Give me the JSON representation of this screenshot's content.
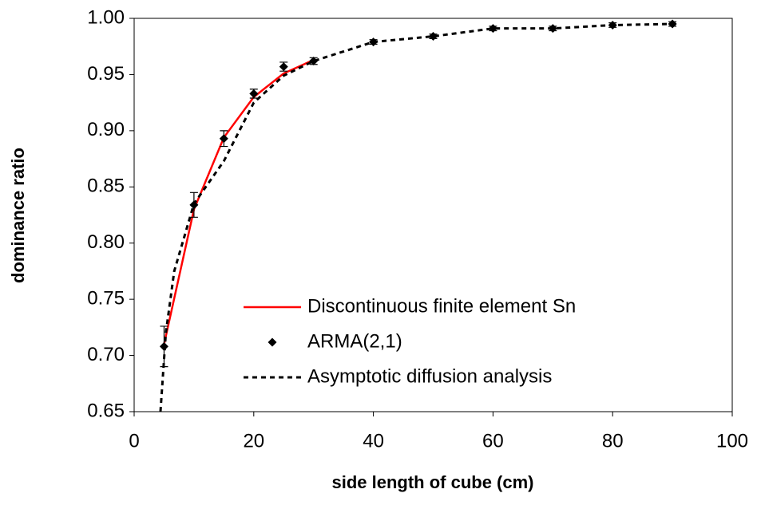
{
  "chart_data": {
    "type": "line",
    "x_label": "side length of cube (cm)",
    "y_label": "dominance ratio",
    "xlim": [
      0,
      100
    ],
    "xticks": [
      0,
      20,
      40,
      60,
      80,
      100
    ],
    "ylim": [
      0.65,
      1.0
    ],
    "yticks": [
      {
        "value": 0.65,
        "label": "0.65"
      },
      {
        "value": 0.7,
        "label": "0.70"
      },
      {
        "value": 0.75,
        "label": "0.75"
      },
      {
        "value": 0.8,
        "label": "0.80"
      },
      {
        "value": 0.85,
        "label": "0.85"
      },
      {
        "value": 0.9,
        "label": "0.90"
      },
      {
        "value": 0.95,
        "label": "0.95"
      },
      {
        "value": 1.0,
        "label": "1.00"
      }
    ],
    "grid": false,
    "legend": "lower right",
    "series": [
      {
        "name": "Discontinuous finite element Sn",
        "color": "#ff0000",
        "style": "solid",
        "x": [
          5,
          10,
          15,
          20,
          25,
          30
        ],
        "values": [
          0.71,
          0.83,
          0.894,
          0.93,
          0.951,
          0.963
        ]
      },
      {
        "name": "ARMA(2,1)",
        "color": "#000000",
        "style": "marker",
        "x": [
          5,
          10,
          15,
          20,
          25,
          30,
          40,
          50,
          60,
          70,
          80,
          90
        ],
        "values": [
          0.708,
          0.834,
          0.893,
          0.933,
          0.957,
          0.962,
          0.979,
          0.984,
          0.991,
          0.991,
          0.994,
          0.995
        ],
        "errors": [
          0.018,
          0.011,
          0.007,
          0.004,
          0.004,
          0.003,
          0.002,
          0.002,
          0.002,
          0.002,
          0.002,
          0.002
        ]
      },
      {
        "name": "Asymptotic diffusion analysis",
        "color": "#000000",
        "style": "dotted",
        "x": [
          4.4,
          5.3,
          6.7,
          10,
          15,
          20,
          25,
          30,
          40,
          50,
          60,
          70,
          80,
          90
        ],
        "values": [
          0.65,
          0.72,
          0.775,
          0.835,
          0.873,
          0.925,
          0.949,
          0.962,
          0.979,
          0.984,
          0.991,
          0.991,
          0.994,
          0.995
        ]
      }
    ]
  }
}
